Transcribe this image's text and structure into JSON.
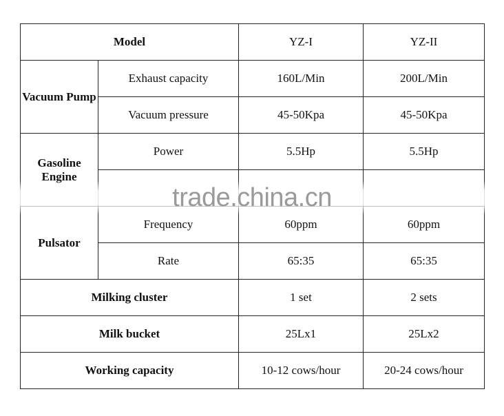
{
  "header": {
    "model": "Model",
    "yz1": "YZ-I",
    "yz2": "YZ-II"
  },
  "vacuum_pump": {
    "label": "Vacuum Pump",
    "rows": [
      {
        "name": "Exhaust capacity",
        "yz1": "160L/Min",
        "yz2": "200L/Min"
      },
      {
        "name": "Vacuum pressure",
        "yz1": "45-50Kpa",
        "yz2": "45-50Kpa"
      }
    ]
  },
  "gasoline_engine": {
    "label": "Gasoline Engine",
    "rows": [
      {
        "name": "Power",
        "yz1": "5.5Hp",
        "yz2": "5.5Hp"
      }
    ]
  },
  "pulsator": {
    "label": "Pulsator",
    "rows": [
      {
        "name": "Frequency",
        "yz1": "60ppm",
        "yz2": "60ppm"
      },
      {
        "name": "Rate",
        "yz1": "65:35",
        "yz2": "65:35"
      }
    ]
  },
  "milking_cluster": {
    "label": "Milking cluster",
    "yz1": "1 set",
    "yz2": "2 sets"
  },
  "milk_bucket": {
    "label": "Milk bucket",
    "yz1": "25Lx1",
    "yz2": "25Lx2"
  },
  "working_capacity": {
    "label": "Working capacity",
    "yz1": "10-12 cows/hour",
    "yz2": "20-24 cows/hour"
  },
  "watermark": "trade.china.cn"
}
